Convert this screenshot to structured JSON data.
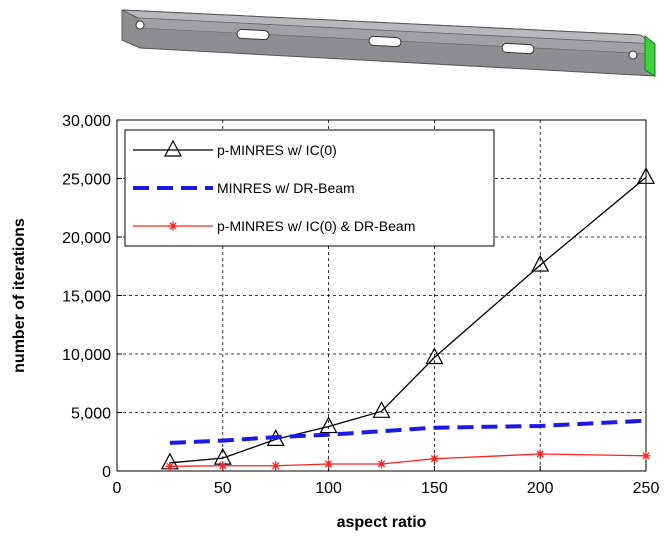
{
  "chart_data": {
    "type": "line",
    "xlabel": "aspect ratio",
    "ylabel": "number of iterations",
    "xlim": [
      0,
      250
    ],
    "xticks": [
      0,
      50,
      100,
      150,
      200,
      250
    ],
    "ylim": [
      0,
      30000
    ],
    "yticks": [
      0,
      {
        "value": 5000,
        "label": "5,000"
      },
      {
        "value": 10000,
        "label": "10,000"
      },
      {
        "value": 15000,
        "label": "15,000"
      },
      {
        "value": 20000,
        "label": "20,000"
      },
      {
        "value": 25000,
        "label": "25,000"
      },
      {
        "value": 30000,
        "label": "30,000"
      }
    ],
    "grid": true,
    "legend": "upper left",
    "series": [
      {
        "name": "p-MINRES w/ IC(0)",
        "color": "#000000",
        "marker": "triangle",
        "linestyle": "solid",
        "x": [
          25,
          50,
          75,
          100,
          125,
          150,
          200,
          250
        ],
        "values": [
          700,
          1100,
          2700,
          3800,
          5100,
          9700,
          17600,
          25100
        ]
      },
      {
        "name": "MINRES w/ DR-Beam",
        "color": "#1a1ae6",
        "marker": "none",
        "linestyle": "dashed",
        "x": [
          25,
          50,
          75,
          100,
          125,
          150,
          200,
          250
        ],
        "values": [
          2400,
          2600,
          2900,
          3100,
          3400,
          3700,
          3850,
          4300
        ]
      },
      {
        "name": "p-MINRES w/ IC(0) & DR-Beam",
        "color": "#ff2020",
        "marker": "star",
        "linestyle": "solid",
        "x": [
          25,
          50,
          75,
          100,
          125,
          150,
          200,
          250
        ],
        "values": [
          400,
          450,
          450,
          600,
          600,
          1050,
          1450,
          1300
        ]
      }
    ]
  }
}
